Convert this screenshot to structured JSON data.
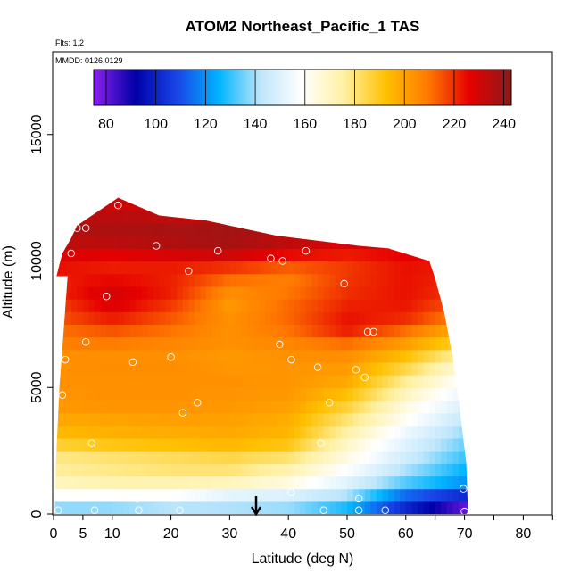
{
  "chart_data": {
    "type": "heatmap",
    "title": "ATOM2 Northeast_Pacific_1 TAS",
    "flights_label": "Flts: 1,2",
    "dates_label": "MMDD: 0126,0129",
    "xlabel": "Latitude (deg N)",
    "ylabel": "Altitude (m)",
    "xlim": [
      0,
      85
    ],
    "ylim": [
      0,
      18000
    ],
    "x_ticks": [
      0,
      5,
      10,
      20,
      30,
      40,
      50,
      60,
      70,
      80
    ],
    "x_minor_ticks": [
      65,
      75,
      85
    ],
    "y_ticks": [
      0,
      5000,
      10000,
      15000
    ],
    "colorbar": {
      "min": 75,
      "max": 243,
      "ticks": [
        80,
        100,
        120,
        140,
        160,
        180,
        200,
        220,
        240
      ],
      "colors": [
        "#8b20ee",
        "#0000a8",
        "#1846e8",
        "#00b4ff",
        "#bfe6fb",
        "#ffffff",
        "#fff0a0",
        "#ffc000",
        "#ff7a00",
        "#e60000",
        "#8b1a1a"
      ]
    },
    "arrow_latitude": 34.5,
    "profile_layers": [
      {
        "alt": 200,
        "values": [
          136,
          136,
          140,
          140,
          138,
          126,
          100,
          78
        ]
      },
      {
        "alt": 700,
        "values": [
          158,
          158,
          158,
          150,
          148,
          140,
          112,
          100
        ]
      },
      {
        "alt": 1200,
        "values": [
          170,
          172,
          172,
          170,
          164,
          150,
          132,
          120
        ]
      },
      {
        "alt": 1700,
        "values": [
          176,
          178,
          180,
          180,
          172,
          158,
          140,
          125
        ]
      },
      {
        "alt": 2200,
        "values": [
          178,
          180,
          182,
          184,
          180,
          164,
          146,
          130
        ]
      },
      {
        "alt": 2700,
        "values": [
          186,
          190,
          192,
          194,
          190,
          168,
          150,
          134
        ]
      },
      {
        "alt": 3200,
        "values": [
          194,
          196,
          197,
          198,
          195,
          174,
          154,
          138
        ]
      },
      {
        "alt": 3700,
        "values": [
          198,
          199,
          200,
          200,
          197,
          180,
          160,
          143
        ]
      },
      {
        "alt": 4200,
        "values": [
          202,
          203,
          203,
          202,
          200,
          186,
          164,
          148
        ]
      },
      {
        "alt": 4700,
        "values": [
          203,
          204,
          204,
          203,
          202,
          192,
          170,
          152
        ]
      },
      {
        "alt": 5200,
        "values": [
          204,
          204,
          204,
          204,
          203,
          198,
          176,
          157
        ]
      },
      {
        "alt": 5700,
        "values": [
          204,
          205,
          205,
          203,
          203,
          201,
          184,
          163
        ]
      },
      {
        "alt": 6200,
        "values": [
          204,
          204,
          204,
          202,
          204,
          204,
          192,
          172
        ]
      },
      {
        "alt": 6700,
        "values": [
          208,
          208,
          206,
          204,
          206,
          210,
          200,
          185
        ]
      },
      {
        "alt": 7200,
        "values": [
          210,
          214,
          210,
          204,
          210,
          222,
          210,
          194
        ]
      },
      {
        "alt": 7700,
        "values": [
          214,
          222,
          214,
          204,
          212,
          224,
          220,
          205
        ]
      },
      {
        "alt": 8200,
        "values": [
          216,
          228,
          218,
          202,
          212,
          222,
          223,
          212
        ]
      },
      {
        "alt": 8700,
        "values": [
          220,
          230,
          222,
          204,
          210,
          220,
          224,
          218
        ]
      },
      {
        "alt": 9200,
        "values": [
          222,
          226,
          222,
          210,
          208,
          219,
          224,
          220
        ]
      },
      {
        "alt": 9700,
        "values": [
          224,
          222,
          222,
          218,
          212,
          218,
          224,
          222
        ]
      },
      {
        "alt": 10200,
        "values": [
          228,
          226,
          228,
          230,
          224,
          222,
          226,
          224
        ]
      },
      {
        "alt": 10700,
        "values": [
          233,
          234,
          236,
          238,
          233,
          228,
          228,
          226
        ]
      },
      {
        "alt": 11200,
        "values": [
          236,
          237,
          238,
          239,
          236,
          232,
          230,
          228
        ]
      },
      {
        "alt": 11700,
        "values": [
          234,
          235,
          234,
          233,
          232,
          230,
          228,
          226
        ]
      },
      {
        "alt": 12200,
        "values": [
          230,
          231,
          230,
          229,
          228,
          226,
          225,
          224
        ]
      }
    ],
    "profile_latitudes": [
      0,
      10,
      20,
      30,
      40,
      50,
      60,
      70
    ],
    "envelope_top": [
      {
        "lat": 0.5,
        "alt": 9400
      },
      {
        "lat": 1.5,
        "alt": 10300
      },
      {
        "lat": 3,
        "alt": 10900
      },
      {
        "lat": 4,
        "alt": 11400
      },
      {
        "lat": 11,
        "alt": 12500
      },
      {
        "lat": 18,
        "alt": 11800
      },
      {
        "lat": 26,
        "alt": 11600
      },
      {
        "lat": 38,
        "alt": 11000
      },
      {
        "lat": 52,
        "alt": 10600
      },
      {
        "lat": 57,
        "alt": 10500
      },
      {
        "lat": 64,
        "alt": 10000
      },
      {
        "lat": 65,
        "alt": 9300
      },
      {
        "lat": 66.5,
        "alt": 8000
      },
      {
        "lat": 68,
        "alt": 6200
      },
      {
        "lat": 69,
        "alt": 4500
      },
      {
        "lat": 70.3,
        "alt": 2000
      },
      {
        "lat": 70.6,
        "alt": 0
      }
    ],
    "envelope_bottom_left": [
      {
        "lat": 0.2,
        "alt": 0
      },
      {
        "lat": 0.4,
        "alt": 2000
      },
      {
        "lat": 1.0,
        "alt": 5000
      },
      {
        "lat": 1.8,
        "alt": 7500
      },
      {
        "lat": 2.4,
        "alt": 9400
      }
    ],
    "sample_points": [
      {
        "lat": 0.8,
        "alt": 150
      },
      {
        "lat": 7,
        "alt": 150
      },
      {
        "lat": 14.5,
        "alt": 150
      },
      {
        "lat": 21.5,
        "alt": 150
      },
      {
        "lat": 46,
        "alt": 150
      },
      {
        "lat": 52,
        "alt": 150
      },
      {
        "lat": 56.5,
        "alt": 150
      },
      {
        "lat": 70,
        "alt": 100
      },
      {
        "lat": 14.2,
        "alt": 600
      },
      {
        "lat": 40.5,
        "alt": 850
      },
      {
        "lat": 52,
        "alt": 600
      },
      {
        "lat": 69.8,
        "alt": 1000
      },
      {
        "lat": 6.5,
        "alt": 2800
      },
      {
        "lat": 45.5,
        "alt": 2800
      },
      {
        "lat": 22,
        "alt": 4000
      },
      {
        "lat": 24.5,
        "alt": 4400
      },
      {
        "lat": 47,
        "alt": 4400
      },
      {
        "lat": 1.5,
        "alt": 4700
      },
      {
        "lat": 53,
        "alt": 5400
      },
      {
        "lat": 51.5,
        "alt": 5700
      },
      {
        "lat": 45,
        "alt": 5800
      },
      {
        "lat": 13.5,
        "alt": 6000
      },
      {
        "lat": 2,
        "alt": 6100
      },
      {
        "lat": 20,
        "alt": 6200
      },
      {
        "lat": 40.5,
        "alt": 6100
      },
      {
        "lat": 38.5,
        "alt": 6700
      },
      {
        "lat": 5.5,
        "alt": 6800
      },
      {
        "lat": 53.5,
        "alt": 7200
      },
      {
        "lat": 54.5,
        "alt": 7200
      },
      {
        "lat": 9,
        "alt": 8600
      },
      {
        "lat": 49.5,
        "alt": 9100
      },
      {
        "lat": 23,
        "alt": 9600
      },
      {
        "lat": 37,
        "alt": 10100
      },
      {
        "lat": 39,
        "alt": 10000
      },
      {
        "lat": 17.5,
        "alt": 10600
      },
      {
        "lat": 43,
        "alt": 10400
      },
      {
        "lat": 28,
        "alt": 10400
      },
      {
        "lat": 63.5,
        "alt": 10300
      },
      {
        "lat": 3,
        "alt": 10300
      },
      {
        "lat": 4,
        "alt": 11300
      },
      {
        "lat": 5.5,
        "alt": 11300
      },
      {
        "lat": 11,
        "alt": 12200
      },
      {
        "lat": 17.5,
        "alt": 12500
      }
    ]
  }
}
